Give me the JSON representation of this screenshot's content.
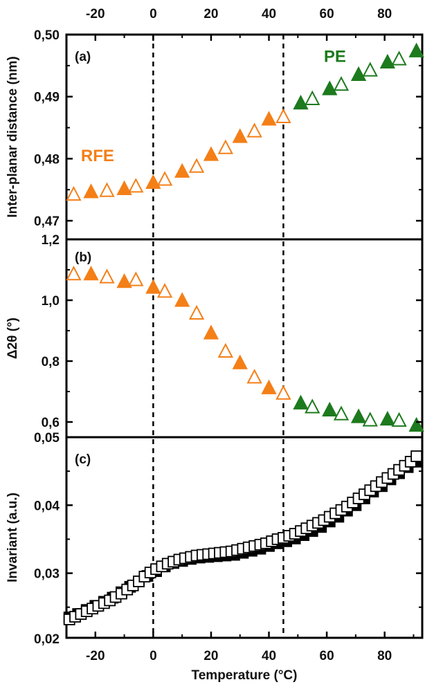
{
  "colors": {
    "rfe": "#F47F17",
    "pe": "#1D7A1D",
    "axis": "#000000",
    "invariant": "#000000"
  },
  "x_axis": {
    "label": "Temperature (°C)",
    "range": [
      -30,
      93
    ],
    "ticks": [
      -20,
      0,
      20,
      40,
      60,
      80
    ],
    "tick_labels": [
      "-20",
      "0",
      "20",
      "40",
      "60",
      "80"
    ]
  },
  "transition_lines": [
    0,
    45
  ],
  "phase_labels": {
    "rfe": "RFE",
    "pe": "PE"
  },
  "chart_data": [
    {
      "type": "scatter",
      "panel": "(a)",
      "ylabel": "Inter-planar distance (nm)",
      "ylim": [
        0.467,
        0.5
      ],
      "yticks": [
        0.47,
        0.48,
        0.49,
        0.5
      ],
      "ytick_labels": [
        "0,47",
        "0,48",
        "0,49",
        "0,50"
      ],
      "phase_labels_shown": true,
      "series": [
        {
          "marker": "triangle",
          "points": [
            {
              "x": -27.5,
              "y": 0.4743,
              "filled": false,
              "phase": "rfe"
            },
            {
              "x": -21.5,
              "y": 0.4747,
              "filled": true,
              "phase": "rfe"
            },
            {
              "x": -16,
              "y": 0.4749,
              "filled": false,
              "phase": "rfe"
            },
            {
              "x": -10,
              "y": 0.4752,
              "filled": true,
              "phase": "rfe"
            },
            {
              "x": -6,
              "y": 0.4756,
              "filled": false,
              "phase": "rfe"
            },
            {
              "x": 0,
              "y": 0.4762,
              "filled": true,
              "phase": "rfe"
            },
            {
              "x": 4,
              "y": 0.4767,
              "filled": false,
              "phase": "rfe"
            },
            {
              "x": 10,
              "y": 0.478,
              "filled": true,
              "phase": "rfe"
            },
            {
              "x": 15,
              "y": 0.4788,
              "filled": false,
              "phase": "rfe"
            },
            {
              "x": 20,
              "y": 0.4807,
              "filled": true,
              "phase": "rfe"
            },
            {
              "x": 25,
              "y": 0.4818,
              "filled": false,
              "phase": "rfe"
            },
            {
              "x": 30,
              "y": 0.4836,
              "filled": true,
              "phase": "rfe"
            },
            {
              "x": 35,
              "y": 0.4845,
              "filled": false,
              "phase": "rfe"
            },
            {
              "x": 40,
              "y": 0.4864,
              "filled": true,
              "phase": "rfe"
            },
            {
              "x": 45,
              "y": 0.4868,
              "filled": false,
              "phase": "rfe"
            },
            {
              "x": 51,
              "y": 0.489,
              "filled": true,
              "phase": "pe"
            },
            {
              "x": 55,
              "y": 0.4897,
              "filled": false,
              "phase": "pe"
            },
            {
              "x": 61,
              "y": 0.4913,
              "filled": true,
              "phase": "pe"
            },
            {
              "x": 65,
              "y": 0.492,
              "filled": false,
              "phase": "pe"
            },
            {
              "x": 71,
              "y": 0.4936,
              "filled": true,
              "phase": "pe"
            },
            {
              "x": 75,
              "y": 0.4943,
              "filled": false,
              "phase": "pe"
            },
            {
              "x": 81,
              "y": 0.4956,
              "filled": true,
              "phase": "pe"
            },
            {
              "x": 85,
              "y": 0.4961,
              "filled": false,
              "phase": "pe"
            },
            {
              "x": 91,
              "y": 0.4974,
              "filled": true,
              "phase": "pe"
            }
          ]
        }
      ]
    },
    {
      "type": "scatter",
      "panel": "(b)",
      "ylabel": "Δ2θ (°)",
      "ylim": [
        0.55,
        1.2
      ],
      "yticks": [
        0.6,
        0.8,
        1.0,
        1.2
      ],
      "ytick_labels": [
        "0,6",
        "0,8",
        "1,0",
        "1,2"
      ],
      "series": [
        {
          "marker": "triangle",
          "points": [
            {
              "x": -27.5,
              "y": 1.087,
              "filled": false,
              "phase": "rfe"
            },
            {
              "x": -21.5,
              "y": 1.087,
              "filled": true,
              "phase": "rfe"
            },
            {
              "x": -16,
              "y": 1.077,
              "filled": false,
              "phase": "rfe"
            },
            {
              "x": -10,
              "y": 1.062,
              "filled": true,
              "phase": "rfe"
            },
            {
              "x": -6,
              "y": 1.068,
              "filled": false,
              "phase": "rfe"
            },
            {
              "x": 0,
              "y": 1.043,
              "filled": true,
              "phase": "rfe"
            },
            {
              "x": 4,
              "y": 1.03,
              "filled": false,
              "phase": "rfe"
            },
            {
              "x": 10,
              "y": 1.0,
              "filled": true,
              "phase": "rfe"
            },
            {
              "x": 15,
              "y": 0.958,
              "filled": false,
              "phase": "rfe"
            },
            {
              "x": 20,
              "y": 0.893,
              "filled": true,
              "phase": "rfe"
            },
            {
              "x": 25,
              "y": 0.833,
              "filled": false,
              "phase": "rfe"
            },
            {
              "x": 30,
              "y": 0.795,
              "filled": true,
              "phase": "rfe"
            },
            {
              "x": 35,
              "y": 0.748,
              "filled": false,
              "phase": "rfe"
            },
            {
              "x": 40,
              "y": 0.713,
              "filled": true,
              "phase": "rfe"
            },
            {
              "x": 45,
              "y": 0.695,
              "filled": false,
              "phase": "rfe"
            },
            {
              "x": 51,
              "y": 0.663,
              "filled": true,
              "phase": "pe"
            },
            {
              "x": 55,
              "y": 0.65,
              "filled": false,
              "phase": "pe"
            },
            {
              "x": 61,
              "y": 0.64,
              "filled": true,
              "phase": "pe"
            },
            {
              "x": 65,
              "y": 0.627,
              "filled": false,
              "phase": "pe"
            },
            {
              "x": 71,
              "y": 0.618,
              "filled": true,
              "phase": "pe"
            },
            {
              "x": 75,
              "y": 0.607,
              "filled": false,
              "phase": "pe"
            },
            {
              "x": 81,
              "y": 0.61,
              "filled": true,
              "phase": "pe"
            },
            {
              "x": 85,
              "y": 0.606,
              "filled": false,
              "phase": "pe"
            },
            {
              "x": 91,
              "y": 0.59,
              "filled": true,
              "phase": "pe"
            }
          ]
        }
      ]
    },
    {
      "type": "scatter",
      "panel": "(c)",
      "ylabel": "Invariant (a.u.)",
      "ylim": [
        0.0205,
        0.05
      ],
      "yticks": [
        0.02,
        0.03,
        0.04,
        0.05
      ],
      "ytick_labels": [
        "0,02",
        "0,03",
        "0,04",
        "0,05"
      ],
      "series": [
        {
          "name": "filled",
          "marker": "square",
          "filled": true,
          "x": [
            -29,
            -26,
            -23,
            -20,
            -17,
            -14,
            -11,
            -8,
            -5,
            -2,
            1,
            4,
            7,
            10,
            13,
            16,
            19,
            22,
            25,
            28,
            31,
            34,
            37,
            40,
            43,
            46,
            49,
            52,
            55,
            58,
            61,
            64,
            67,
            70,
            73,
            76,
            79,
            82,
            85,
            88,
            91
          ],
          "y": [
            0.0235,
            0.024,
            0.0246,
            0.0252,
            0.0258,
            0.0264,
            0.0272,
            0.028,
            0.0288,
            0.0296,
            0.0303,
            0.031,
            0.0315,
            0.0318,
            0.0321,
            0.0323,
            0.0324,
            0.0325,
            0.0326,
            0.0327,
            0.033,
            0.0333,
            0.0336,
            0.034,
            0.0344,
            0.0347,
            0.0351,
            0.0356,
            0.0362,
            0.0368,
            0.0376,
            0.0383,
            0.0392,
            0.04,
            0.041,
            0.042,
            0.0428,
            0.0438,
            0.0447,
            0.0456,
            0.0464
          ]
        },
        {
          "name": "open",
          "marker": "square",
          "filled": false,
          "x": [
            -29,
            -27,
            -25,
            -23,
            -21,
            -19,
            -17,
            -15,
            -13,
            -11,
            -9,
            -7,
            -5,
            -3,
            -1,
            1,
            3,
            5,
            7,
            9,
            11,
            13,
            15,
            17,
            19,
            21,
            23,
            25,
            27,
            29,
            31,
            33,
            35,
            37,
            39,
            41,
            43,
            45,
            47,
            49,
            51,
            53,
            55,
            57,
            59,
            61,
            63,
            65,
            67,
            69,
            71,
            73,
            75,
            77,
            79,
            81,
            83,
            85,
            87,
            89,
            91
          ],
          "y": [
            0.0232,
            0.0236,
            0.024,
            0.0244,
            0.0248,
            0.0252,
            0.0256,
            0.026,
            0.0265,
            0.027,
            0.0276,
            0.0282,
            0.0288,
            0.0295,
            0.0301,
            0.0306,
            0.031,
            0.0314,
            0.0317,
            0.032,
            0.0322,
            0.0324,
            0.0326,
            0.0327,
            0.0328,
            0.0329,
            0.033,
            0.0331,
            0.0332,
            0.0334,
            0.0336,
            0.0338,
            0.034,
            0.0342,
            0.0344,
            0.0347,
            0.035,
            0.0352,
            0.0355,
            0.0358,
            0.0362,
            0.0366,
            0.037,
            0.0374,
            0.0378,
            0.0383,
            0.0388,
            0.0393,
            0.0398,
            0.0404,
            0.041,
            0.0416,
            0.0422,
            0.0428,
            0.0434,
            0.044,
            0.0446,
            0.0452,
            0.0458,
            0.0464,
            0.0472
          ]
        }
      ]
    }
  ]
}
